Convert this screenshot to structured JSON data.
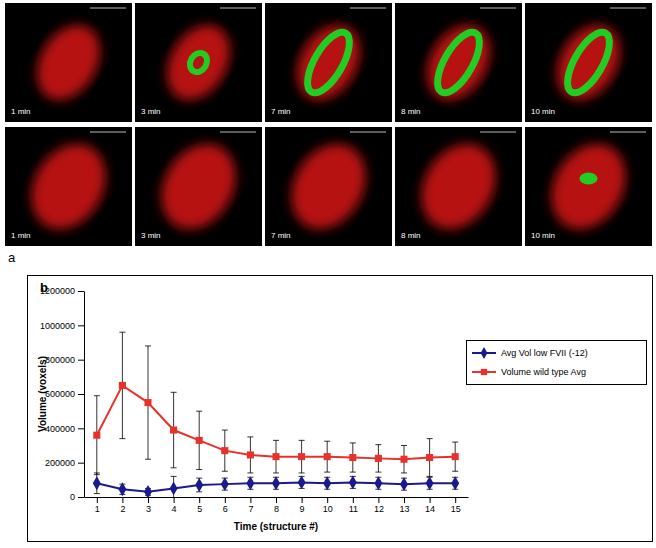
{
  "panel_a": {
    "label": "a",
    "rows": [
      [
        "1 min",
        "3 min",
        "7 min",
        "8 min",
        "10 min"
      ],
      [
        "1 min",
        "3 min",
        "7 min",
        "8 min",
        "10 min"
      ]
    ]
  },
  "panel_b": {
    "label": "b"
  },
  "chart_data": {
    "type": "line",
    "x_label": "Time (structure #)",
    "y_label": "Volume (voxels)",
    "categories": [
      "1",
      "2",
      "3",
      "4",
      "5",
      "6",
      "7",
      "8",
      "9",
      "10",
      "11",
      "12",
      "13",
      "14",
      "15"
    ],
    "series": [
      {
        "name": "Avg Vol  low FVII (-12)",
        "color": "#1a1a8c",
        "marker": "diamond",
        "values": [
          80000,
          45000,
          30000,
          50000,
          70000,
          75000,
          80000,
          80000,
          85000,
          80000,
          85000,
          80000,
          75000,
          80000,
          80000
        ],
        "errors": [
          60000,
          30000,
          20000,
          70000,
          40000,
          35000,
          35000,
          35000,
          35000,
          35000,
          35000,
          35000,
          35000,
          35000,
          35000
        ]
      },
      {
        "name": "Volume  wild type Avg",
        "color": "#e8312a",
        "marker": "square",
        "values": [
          360000,
          650000,
          550000,
          390000,
          330000,
          270000,
          245000,
          235000,
          235000,
          235000,
          230000,
          225000,
          220000,
          230000,
          235000
        ],
        "errors": [
          230000,
          310000,
          330000,
          220000,
          170000,
          120000,
          105000,
          95000,
          95000,
          90000,
          85000,
          80000,
          80000,
          110000,
          85000
        ]
      }
    ],
    "ylim": [
      0,
      1200000
    ],
    "yticks": [
      0,
      200000,
      400000,
      600000,
      800000,
      1000000,
      1200000
    ],
    "grid": false,
    "legend": "right"
  }
}
